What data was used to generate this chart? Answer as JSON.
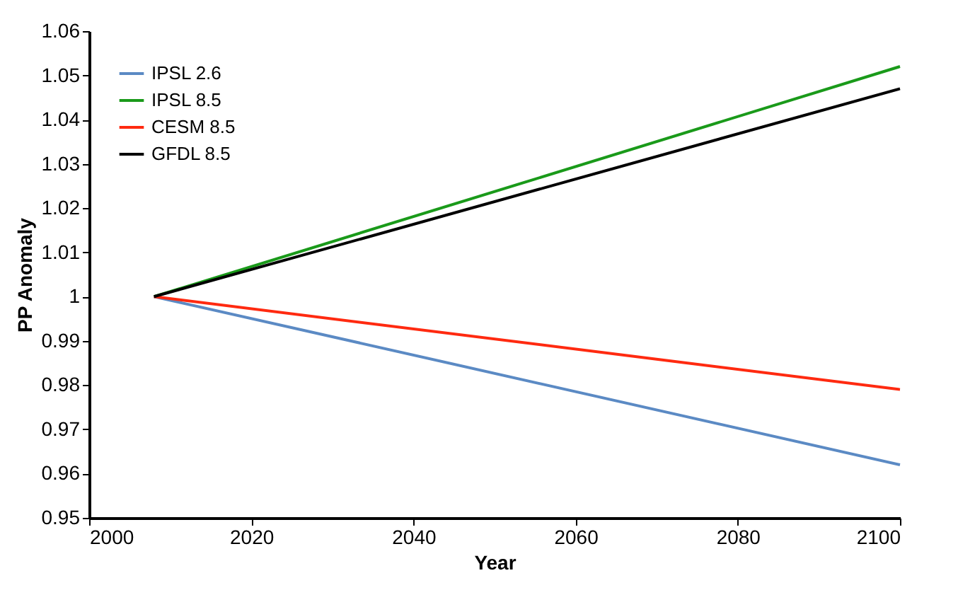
{
  "chart_data": {
    "type": "line",
    "xlabel": "Year",
    "ylabel": "PP Anomaly",
    "x": [
      2008,
      2100
    ],
    "series": [
      {
        "name": "IPSL 2.6",
        "color": "#5b8ac4",
        "values": [
          1,
          0.962
        ]
      },
      {
        "name": "IPSL 8.5",
        "color": "#1a9a1a",
        "values": [
          1,
          1.052
        ]
      },
      {
        "name": "CESM 8.5",
        "color": "#ff2a10",
        "values": [
          1,
          0.979
        ]
      },
      {
        "name": "GFDL 8.5",
        "color": "#000000",
        "values": [
          1,
          1.047
        ]
      }
    ],
    "xlim": [
      2000,
      2100
    ],
    "xticks": [
      2000,
      2020,
      2040,
      2060,
      2080,
      2100
    ],
    "ylim": [
      0.95,
      1.06
    ],
    "yticks": [
      0.95,
      0.96,
      0.97,
      0.98,
      0.99,
      1,
      1.01,
      1.02,
      1.03,
      1.04,
      1.05,
      1.06
    ],
    "grid": false,
    "legend": "top left",
    "marker": "none",
    "line_style": "solid"
  }
}
